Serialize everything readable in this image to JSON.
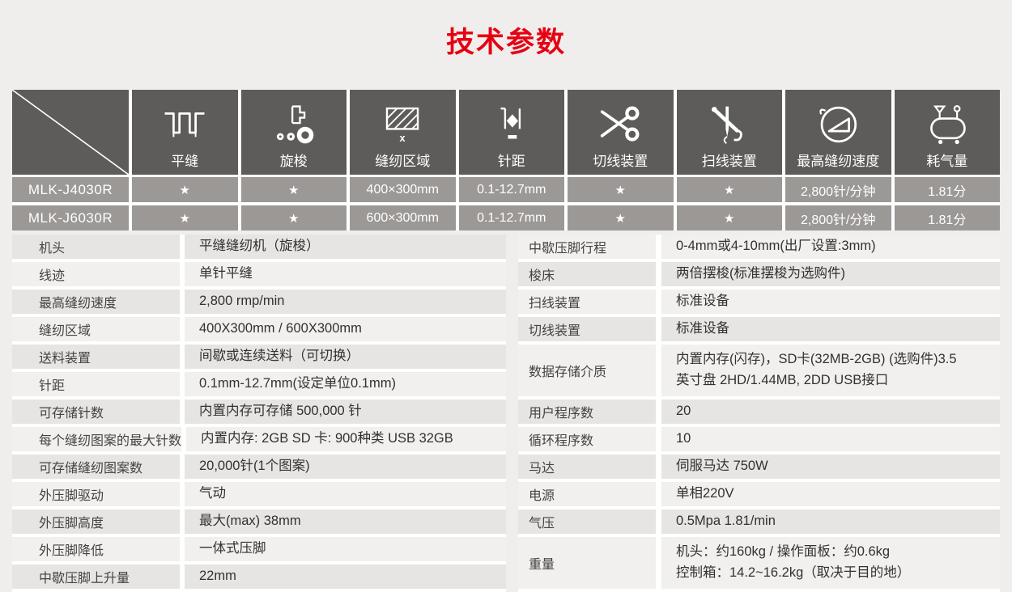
{
  "page": {
    "title": "技术参数"
  },
  "colors": {
    "accent": "#e60012",
    "header_bg": "#5e5c5a",
    "matrix_row_bg": "#9b9896",
    "spec_row_dark": "#e7e5e3",
    "spec_row_light": "#f1f0ee"
  },
  "matrix": {
    "columns": [
      {
        "id": "flat-seam",
        "label": "平缝",
        "icon": "flat-seam-icon"
      },
      {
        "id": "rotary-hook",
        "label": "旋梭",
        "icon": "rotary-hook-icon"
      },
      {
        "id": "sewing-area",
        "label": "缝纫区域",
        "icon": "sewing-area-icon"
      },
      {
        "id": "stitch-length",
        "label": "针距",
        "icon": "stitch-length-icon"
      },
      {
        "id": "thread-trimmer",
        "label": "切线装置",
        "icon": "thread-trimmer-icon"
      },
      {
        "id": "wiper",
        "label": "扫线装置",
        "icon": "wiper-icon"
      },
      {
        "id": "max-speed",
        "label": "最高缝纫速度",
        "icon": "max-speed-icon"
      },
      {
        "id": "air-consumption",
        "label": "耗气量",
        "icon": "air-consumption-icon"
      }
    ],
    "rows": [
      {
        "model": "MLK-J4030R",
        "cells": [
          "★",
          "★",
          "400×300mm",
          "0.1-12.7mm",
          "★",
          "★",
          "2,800针/分钟",
          "1.81分"
        ]
      },
      {
        "model": "MLK-J6030R",
        "cells": [
          "★",
          "★",
          "600×300mm",
          "0.1-12.7mm",
          "★",
          "★",
          "2,800针/分钟",
          "1.81分"
        ]
      }
    ]
  },
  "specs": {
    "left": [
      {
        "label": "机头",
        "value": "平缝缝纫机（旋梭）"
      },
      {
        "label": "线迹",
        "value": "单针平缝"
      },
      {
        "label": "最高缝纫速度",
        "value": "2,800 rmp/min"
      },
      {
        "label": "缝纫区域",
        "value": "400X300mm / 600X300mm"
      },
      {
        "label": "送料装置",
        "value": "间歇或连续送料（可切换）"
      },
      {
        "label": "针距",
        "value": "0.1mm-12.7mm(设定单位0.1mm)"
      },
      {
        "label": "可存储针数",
        "value": "内置内存可存储 500,000 针"
      },
      {
        "label": "每个缝纫图案的最大针数",
        "value": "内置内存: 2GB  SD 卡: 900种类 USB 32GB"
      },
      {
        "label": "可存储缝纫图案数",
        "value": "20,000针(1个图案)"
      },
      {
        "label": "外压脚驱动",
        "value": "气动"
      },
      {
        "label": "外压脚高度",
        "value": "最大(max) 38mm"
      },
      {
        "label": "外压脚降低",
        "value": "一体式压脚"
      },
      {
        "label": "中歇压脚上升量",
        "value": "22mm"
      }
    ],
    "right": [
      {
        "label": "中歇压脚行程",
        "value": "0-4mm或4-10mm(出厂设置:3mm)"
      },
      {
        "label": "梭床",
        "value": "两倍摆梭(标准摆梭为选购件)"
      },
      {
        "label": "扫线装置",
        "value": "标准设备"
      },
      {
        "label": "切线装置",
        "value": "标准设备"
      },
      {
        "label": "数据存储介质",
        "value": "内置内存(闪存)，SD卡(32MB-2GB) (选购件)3.5\n英寸盘  2HD/1.44MB, 2DD  USB接口",
        "tall": true
      },
      {
        "label": "用户程序数",
        "value": "20"
      },
      {
        "label": "循环程序数",
        "value": "10"
      },
      {
        "label": "马达",
        "value": "伺服马达 750W"
      },
      {
        "label": "电源",
        "value": "单相220V"
      },
      {
        "label": "气压",
        "value": "0.5Mpa 1.81/min"
      },
      {
        "label": "重量",
        "value": "机头：约160kg  /  操作面板：约0.6kg\n控制箱：14.2~16.2kg（取决于目的地）",
        "tall": true
      }
    ]
  }
}
